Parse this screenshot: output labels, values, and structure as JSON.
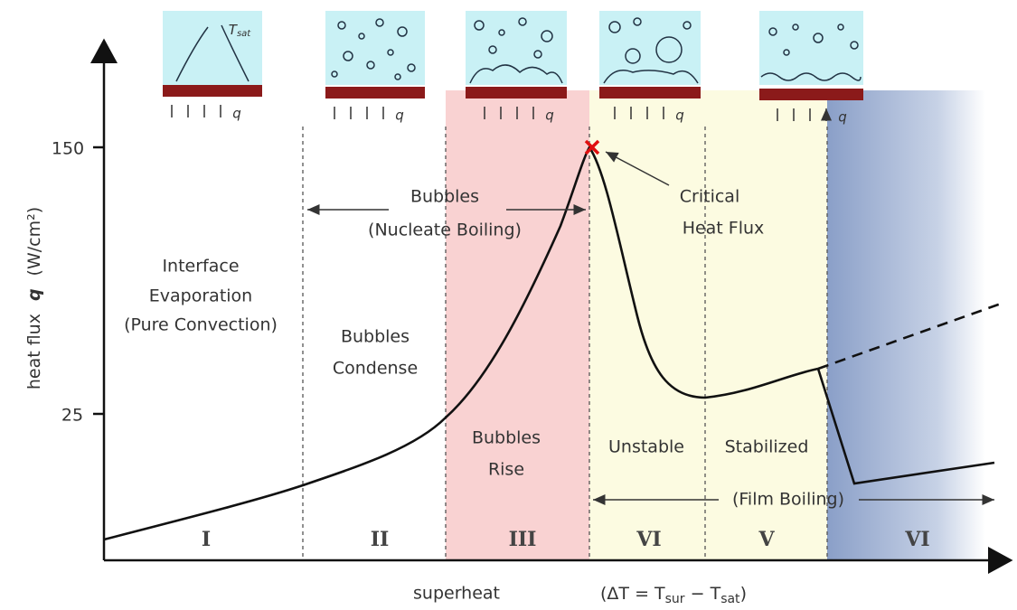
{
  "axes": {
    "y_label": "heat flux",
    "y_symbol": "q",
    "y_unit": "(W/cm²)",
    "y_ticks": [
      "150",
      "25"
    ],
    "x_label": "superheat",
    "x_formula": [
      "(ΔT = T",
      "sur",
      " − T",
      "sat",
      ")"
    ]
  },
  "sketches": {
    "flux": "q",
    "t_sat": [
      "T",
      "sat"
    ]
  },
  "regions": [
    {
      "numeral": "I",
      "label": [
        "Interface",
        "Evaporation",
        "(Pure Convection)"
      ]
    },
    {
      "numeral": "II",
      "label": [
        "Bubbles",
        "Condense"
      ]
    },
    {
      "numeral": "III",
      "label": [
        "Bubbles",
        "Rise"
      ]
    },
    {
      "numeral": "VI",
      "label": [
        "Unstable"
      ]
    },
    {
      "numeral": "V",
      "label": [
        "Stabilized"
      ]
    },
    {
      "numeral": "VI",
      "label": []
    }
  ],
  "annotations": {
    "nucleate": [
      "Bubbles",
      "(Nucleate Boiling)"
    ],
    "critical": [
      "Critical",
      "Heat Flux"
    ],
    "film": "(Film Boiling)"
  }
}
